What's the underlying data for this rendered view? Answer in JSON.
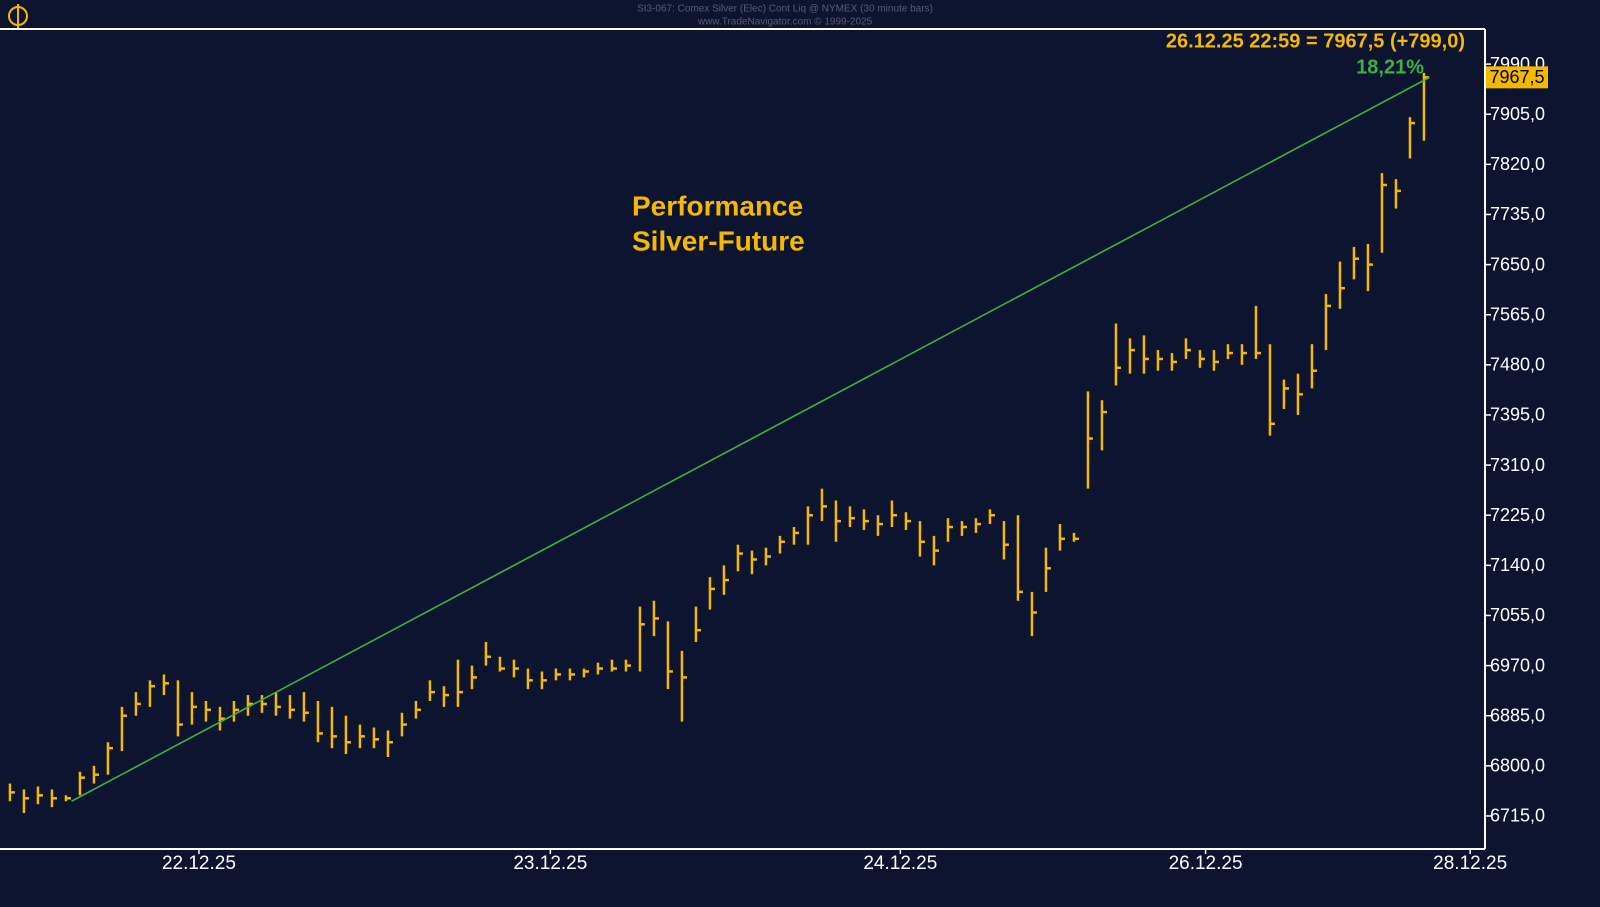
{
  "chart_data": {
    "type": "ohlc",
    "title": "SI3-067: Comex Silver (Elec) Cont Liq @ NYMEX (30 minute bars)",
    "subtitle": "www.TradeNavigator.com © 1999-2025",
    "header": "26.12.25 22:59 = 7967,5 (+799,0)",
    "performance": "18,21%",
    "last_label": "7967,5",
    "annotation": [
      "Performance",
      "Silver-Future"
    ],
    "color": "#f5b800",
    "x": [
      0,
      1,
      2,
      3,
      4,
      5,
      6,
      7,
      8,
      9,
      10,
      11,
      12,
      13,
      14,
      15,
      16,
      17,
      18,
      19,
      20,
      21,
      22,
      23,
      24,
      25,
      26,
      27,
      28,
      29,
      30,
      31,
      32,
      33,
      34,
      35,
      36,
      37,
      38,
      39,
      40,
      41,
      42,
      43,
      44,
      45,
      46,
      47,
      48,
      49,
      50,
      51,
      52,
      53,
      54,
      55,
      56,
      57,
      58,
      59,
      60,
      61,
      62,
      63,
      64,
      65,
      66,
      67,
      68,
      69,
      70,
      71,
      72,
      73,
      74,
      75,
      76,
      77,
      78,
      79,
      80,
      81,
      82,
      83,
      84,
      85,
      86,
      87,
      88,
      89,
      90,
      91,
      92,
      93,
      94,
      95,
      96,
      97,
      98,
      99,
      100,
      101
    ],
    "high": [
      6770,
      6760,
      6765,
      6760,
      6750,
      6790,
      6800,
      6840,
      6900,
      6925,
      6945,
      6955,
      6945,
      6925,
      6910,
      6900,
      6910,
      6920,
      6920,
      6925,
      6920,
      6925,
      6910,
      6900,
      6885,
      6870,
      6865,
      6860,
      6890,
      6910,
      6945,
      6935,
      6980,
      6970,
      7010,
      6985,
      6980,
      6965,
      6960,
      6965,
      6965,
      6965,
      6975,
      6980,
      6980,
      7070,
      7080,
      7045,
      6995,
      7070,
      7120,
      7140,
      7175,
      7165,
      7170,
      7190,
      7205,
      7240,
      7270,
      7250,
      7240,
      7235,
      7225,
      7250,
      7230,
      7215,
      7190,
      7220,
      7215,
      7220,
      7235,
      7215,
      7225,
      7095,
      7170,
      7210,
      7195,
      7435,
      7420,
      7550,
      7525,
      7530,
      7505,
      7500,
      7525,
      7505,
      7505,
      7515,
      7515,
      7580,
      7515,
      7455,
      7465,
      7515,
      7600,
      7655,
      7680,
      7685,
      7805,
      7795,
      7900,
      7975
    ],
    "low": [
      6740,
      6720,
      6735,
      6730,
      6740,
      6750,
      6770,
      6785,
      6825,
      6885,
      6900,
      6920,
      6850,
      6870,
      6875,
      6860,
      6875,
      6885,
      6890,
      6885,
      6880,
      6875,
      6840,
      6830,
      6820,
      6830,
      6830,
      6815,
      6850,
      6880,
      6910,
      6900,
      6900,
      6930,
      6970,
      6960,
      6950,
      6930,
      6930,
      6945,
      6945,
      6950,
      6955,
      6960,
      6960,
      6960,
      7020,
      6930,
      6875,
      7010,
      7065,
      7090,
      7130,
      7125,
      7140,
      7160,
      7175,
      7175,
      7215,
      7180,
      7205,
      7200,
      7190,
      7205,
      7200,
      7155,
      7140,
      7180,
      7190,
      7195,
      7210,
      7150,
      7080,
      7020,
      7095,
      7165,
      7180,
      7270,
      7335,
      7445,
      7465,
      7465,
      7470,
      7470,
      7490,
      7475,
      7470,
      7490,
      7480,
      7490,
      7360,
      7405,
      7395,
      7440,
      7505,
      7575,
      7625,
      7605,
      7670,
      7745,
      7830,
      7860
    ],
    "close": [
      6755,
      6745,
      6750,
      6745,
      6745,
      6780,
      6785,
      6830,
      6885,
      6905,
      6935,
      6940,
      6870,
      6900,
      6895,
      6880,
      6895,
      6905,
      6905,
      6900,
      6895,
      6890,
      6855,
      6850,
      6840,
      6850,
      6845,
      6840,
      6870,
      6895,
      6925,
      6920,
      6925,
      6950,
      6985,
      6965,
      6965,
      6945,
      6945,
      6955,
      6955,
      6960,
      6965,
      6965,
      6970,
      7040,
      7050,
      6960,
      6950,
      7030,
      7100,
      7115,
      7160,
      7150,
      7155,
      7180,
      7195,
      7225,
      7240,
      7215,
      7220,
      7215,
      7210,
      7225,
      7215,
      7180,
      7165,
      7205,
      7205,
      7210,
      7225,
      7175,
      7095,
      7060,
      7135,
      7185,
      7185,
      7355,
      7400,
      7475,
      7505,
      7490,
      7490,
      7485,
      7505,
      7490,
      7485,
      7500,
      7500,
      7500,
      7380,
      7440,
      7430,
      7470,
      7580,
      7610,
      7660,
      7650,
      7785,
      7775,
      7890,
      7967.5
    ],
    "trend_line": {
      "x": [
        4.4,
        101.4
      ],
      "y": [
        6740,
        7967.5
      ],
      "color": "#3cb043"
    },
    "xlim": [
      -0.71,
      105.36
    ],
    "xticks": [
      {
        "value": 13.5,
        "label": "22.12.25"
      },
      {
        "value": 38.6,
        "label": "23.12.25"
      },
      {
        "value": 63.6,
        "label": "24.12.25"
      },
      {
        "value": 85.4,
        "label": "26.12.25"
      },
      {
        "value": 104.3,
        "label": "28.12.25"
      }
    ],
    "ylim": [
      6659,
      8049.5
    ],
    "yticks": [
      {
        "value": 6715,
        "label": "6715,0"
      },
      {
        "value": 6800,
        "label": "6800,0"
      },
      {
        "value": 6885,
        "label": "6885,0"
      },
      {
        "value": 6970,
        "label": "6970,0"
      },
      {
        "value": 7055,
        "label": "7055,0"
      },
      {
        "value": 7140,
        "label": "7140,0"
      },
      {
        "value": 7225,
        "label": "7225,0"
      },
      {
        "value": 7310,
        "label": "7310,0"
      },
      {
        "value": 7395,
        "label": "7395,0"
      },
      {
        "value": 7480,
        "label": "7480,0"
      },
      {
        "value": 7565,
        "label": "7565,0"
      },
      {
        "value": 7650,
        "label": "7650,0"
      },
      {
        "value": 7735,
        "label": "7735,0"
      },
      {
        "value": 7820,
        "label": "7820,0"
      },
      {
        "value": 7905,
        "label": "7905,0"
      },
      {
        "value": 7990,
        "label": "7990,0"
      }
    ]
  }
}
